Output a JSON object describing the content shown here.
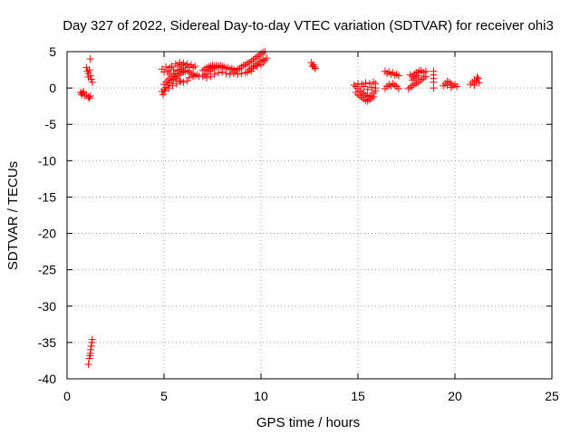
{
  "chart_data": {
    "type": "scatter",
    "title": "Day 327 of 2022, Sidereal Day-to-day VTEC variation (SDTVAR) for receiver ohi3",
    "xlabel": "GPS time / hours",
    "ylabel": "SDTVAR / TECUs",
    "xlim": [
      0,
      25
    ],
    "ylim": [
      -40,
      5
    ],
    "xticks": [
      0,
      5,
      10,
      15,
      20,
      25
    ],
    "yticks": [
      5,
      0,
      -5,
      -10,
      -15,
      -20,
      -25,
      -30,
      -35,
      -40
    ],
    "grid": true,
    "marker": "plus",
    "series_color": "#ff0000",
    "series": [
      {
        "name": "SDTVAR",
        "points": [
          [
            0.7,
            -0.6
          ],
          [
            0.75,
            -0.9
          ],
          [
            0.8,
            -0.7
          ],
          [
            0.85,
            -0.5
          ],
          [
            0.9,
            -1.0
          ],
          [
            1.0,
            -1.0
          ],
          [
            1.1,
            -1.2
          ],
          [
            1.15,
            -1.4
          ],
          [
            1.2,
            -1.1
          ],
          [
            1.0,
            2.8
          ],
          [
            1.05,
            2.3
          ],
          [
            1.1,
            2.0
          ],
          [
            1.15,
            2.5
          ],
          [
            1.2,
            1.7
          ],
          [
            1.25,
            1.2
          ],
          [
            1.3,
            0.8
          ],
          [
            1.2,
            4.0
          ],
          [
            1.1,
            1.5
          ],
          [
            1.1,
            -38.0
          ],
          [
            1.15,
            -37.2
          ],
          [
            1.2,
            -36.5
          ],
          [
            1.22,
            -36.0
          ],
          [
            1.25,
            -35.5
          ],
          [
            1.28,
            -35.0
          ],
          [
            1.3,
            -34.6
          ],
          [
            1.18,
            -36.8
          ],
          [
            4.9,
            2.6
          ],
          [
            5.0,
            2.2
          ],
          [
            5.1,
            2.9
          ],
          [
            5.2,
            2.4
          ],
          [
            5.3,
            2.8
          ],
          [
            5.4,
            3.0
          ],
          [
            5.5,
            2.5
          ],
          [
            5.6,
            3.3
          ],
          [
            5.7,
            3.0
          ],
          [
            5.8,
            3.5
          ],
          [
            5.9,
            3.2
          ],
          [
            6.0,
            3.4
          ],
          [
            6.1,
            3.1
          ],
          [
            6.2,
            3.3
          ],
          [
            6.3,
            2.9
          ],
          [
            6.4,
            3.2
          ],
          [
            6.5,
            2.8
          ],
          [
            6.6,
            3.0
          ],
          [
            4.9,
            -0.5
          ],
          [
            5.0,
            -0.2
          ],
          [
            5.1,
            0.1
          ],
          [
            5.2,
            0.4
          ],
          [
            5.3,
            0.7
          ],
          [
            5.4,
            1.0
          ],
          [
            5.5,
            1.2
          ],
          [
            5.6,
            1.5
          ],
          [
            5.7,
            1.7
          ],
          [
            5.8,
            1.9
          ],
          [
            5.9,
            2.1
          ],
          [
            6.0,
            2.2
          ],
          [
            6.1,
            2.3
          ],
          [
            6.2,
            2.4
          ],
          [
            6.3,
            2.2
          ],
          [
            6.4,
            2.0
          ],
          [
            6.5,
            1.9
          ],
          [
            6.6,
            1.7
          ],
          [
            6.7,
            1.8
          ],
          [
            6.8,
            1.6
          ],
          [
            5.0,
            0.5
          ],
          [
            5.1,
            0.8
          ],
          [
            5.2,
            1.1
          ],
          [
            5.3,
            1.3
          ],
          [
            5.4,
            1.6
          ],
          [
            5.5,
            1.9
          ],
          [
            5.6,
            2.0
          ],
          [
            5.7,
            2.3
          ],
          [
            5.8,
            2.5
          ],
          [
            5.9,
            2.6
          ],
          [
            6.0,
            2.8
          ],
          [
            5.2,
            2.2
          ],
          [
            5.3,
            1.9
          ],
          [
            5.5,
            1.6
          ],
          [
            5.6,
            1.3
          ],
          [
            5.8,
            1.0
          ],
          [
            6.0,
            0.8
          ],
          [
            6.2,
            1.0
          ],
          [
            6.3,
            1.4
          ],
          [
            6.5,
            1.6
          ],
          [
            4.95,
            -0.9
          ],
          [
            5.05,
            -0.4
          ],
          [
            5.25,
            0.0
          ],
          [
            5.45,
            0.3
          ],
          [
            5.65,
            0.6
          ],
          [
            5.85,
            0.9
          ],
          [
            7.0,
            1.6
          ],
          [
            7.1,
            1.8
          ],
          [
            7.2,
            2.0
          ],
          [
            7.3,
            2.3
          ],
          [
            7.4,
            2.5
          ],
          [
            7.5,
            2.7
          ],
          [
            7.6,
            2.8
          ],
          [
            7.7,
            2.9
          ],
          [
            7.8,
            3.0
          ],
          [
            7.9,
            2.9
          ],
          [
            8.0,
            2.8
          ],
          [
            8.1,
            2.9
          ],
          [
            8.2,
            2.7
          ],
          [
            8.3,
            2.8
          ],
          [
            8.4,
            2.6
          ],
          [
            8.5,
            2.7
          ],
          [
            8.6,
            2.5
          ],
          [
            7.0,
            2.4
          ],
          [
            7.1,
            2.6
          ],
          [
            7.2,
            2.8
          ],
          [
            7.3,
            2.9
          ],
          [
            7.4,
            3.0
          ],
          [
            7.5,
            3.1
          ],
          [
            7.6,
            3.0
          ],
          [
            7.7,
            3.1
          ],
          [
            7.8,
            3.0
          ],
          [
            7.9,
            3.1
          ],
          [
            8.0,
            3.0
          ],
          [
            7.2,
            1.4
          ],
          [
            7.4,
            1.6
          ],
          [
            7.6,
            1.9
          ],
          [
            7.8,
            2.1
          ],
          [
            8.0,
            2.2
          ],
          [
            8.2,
            2.0
          ],
          [
            8.4,
            1.9
          ],
          [
            8.6,
            2.0
          ],
          [
            8.8,
            1.9
          ],
          [
            9.0,
            2.0
          ],
          [
            9.2,
            2.1
          ],
          [
            8.6,
            2.2
          ],
          [
            8.7,
            2.4
          ],
          [
            8.8,
            2.6
          ],
          [
            8.9,
            2.7
          ],
          [
            9.0,
            2.9
          ],
          [
            9.1,
            3.1
          ],
          [
            9.2,
            3.2
          ],
          [
            9.3,
            3.4
          ],
          [
            9.4,
            3.5
          ],
          [
            9.5,
            3.7
          ],
          [
            9.6,
            3.9
          ],
          [
            9.7,
            4.1
          ],
          [
            9.8,
            4.3
          ],
          [
            9.9,
            4.5
          ],
          [
            10.0,
            4.7
          ],
          [
            10.1,
            4.9
          ],
          [
            10.2,
            5.0
          ],
          [
            9.3,
            2.2
          ],
          [
            9.4,
            2.5
          ],
          [
            9.5,
            2.7
          ],
          [
            9.6,
            2.9
          ],
          [
            9.7,
            3.1
          ],
          [
            9.8,
            3.3
          ],
          [
            9.9,
            3.5
          ],
          [
            10.0,
            3.7
          ],
          [
            10.1,
            3.9
          ],
          [
            9.4,
            2.5
          ],
          [
            9.5,
            2.3
          ],
          [
            9.6,
            2.7
          ],
          [
            9.8,
            3.0
          ],
          [
            10.0,
            3.2
          ],
          [
            10.1,
            3.5
          ],
          [
            10.2,
            3.8
          ],
          [
            10.3,
            4.1
          ],
          [
            12.6,
            3.5
          ],
          [
            12.7,
            3.2
          ],
          [
            12.75,
            2.9
          ],
          [
            12.8,
            2.7
          ],
          [
            12.65,
            3.0
          ],
          [
            14.8,
            0.4
          ],
          [
            14.9,
            0.2
          ],
          [
            15.0,
            -0.1
          ],
          [
            15.1,
            -0.4
          ],
          [
            15.2,
            -0.6
          ],
          [
            15.3,
            -0.8
          ],
          [
            15.4,
            -1.0
          ],
          [
            15.5,
            -1.1
          ],
          [
            15.6,
            -1.2
          ],
          [
            15.7,
            -1.0
          ],
          [
            15.8,
            -0.7
          ],
          [
            14.9,
            -0.6
          ],
          [
            15.0,
            -0.9
          ],
          [
            15.1,
            -1.1
          ],
          [
            15.2,
            -1.3
          ],
          [
            15.3,
            -1.5
          ],
          [
            15.4,
            -1.7
          ],
          [
            15.5,
            -1.8
          ],
          [
            15.6,
            -1.6
          ],
          [
            15.7,
            -1.4
          ],
          [
            15.8,
            -1.2
          ],
          [
            15.0,
            0.6
          ],
          [
            15.2,
            0.5
          ],
          [
            15.4,
            0.7
          ],
          [
            15.6,
            0.6
          ],
          [
            15.8,
            0.8
          ],
          [
            15.9,
            0.6
          ],
          [
            15.9,
            0.0
          ],
          [
            15.9,
            -0.4
          ],
          [
            15.3,
            0.2
          ],
          [
            15.5,
            -0.2
          ],
          [
            15.7,
            0.1
          ],
          [
            16.4,
            2.3
          ],
          [
            16.5,
            2.0
          ],
          [
            16.6,
            2.2
          ],
          [
            16.7,
            1.9
          ],
          [
            16.8,
            2.1
          ],
          [
            16.9,
            1.8
          ],
          [
            17.0,
            1.9
          ],
          [
            17.1,
            1.7
          ],
          [
            16.4,
            -0.1
          ],
          [
            16.5,
            0.2
          ],
          [
            16.6,
            0.5
          ],
          [
            16.7,
            0.3
          ],
          [
            16.8,
            0.6
          ],
          [
            16.9,
            0.4
          ],
          [
            17.0,
            0.2
          ],
          [
            17.1,
            -0.1
          ],
          [
            17.6,
            -0.1
          ],
          [
            17.7,
            0.1
          ],
          [
            17.8,
            0.3
          ],
          [
            17.9,
            0.5
          ],
          [
            18.0,
            0.6
          ],
          [
            18.1,
            0.8
          ],
          [
            18.2,
            1.0
          ],
          [
            18.3,
            1.2
          ],
          [
            18.4,
            1.4
          ],
          [
            18.5,
            1.6
          ],
          [
            17.7,
            1.8
          ],
          [
            17.8,
            1.6
          ],
          [
            17.9,
            1.9
          ],
          [
            18.0,
            2.1
          ],
          [
            18.1,
            2.2
          ],
          [
            18.2,
            2.4
          ],
          [
            18.3,
            2.3
          ],
          [
            18.4,
            2.1
          ],
          [
            18.5,
            2.3
          ],
          [
            17.8,
            1.1
          ],
          [
            17.9,
            1.3
          ],
          [
            18.0,
            1.5
          ],
          [
            18.1,
            1.7
          ],
          [
            18.9,
            2.3
          ],
          [
            18.9,
            1.8
          ],
          [
            18.9,
            1.3
          ],
          [
            18.9,
            0.8
          ],
          [
            18.9,
            0.0
          ],
          [
            19.4,
            0.3
          ],
          [
            19.5,
            0.6
          ],
          [
            19.6,
            0.4
          ],
          [
            19.7,
            0.8
          ],
          [
            19.8,
            0.6
          ],
          [
            19.9,
            0.3
          ],
          [
            20.0,
            0.5
          ],
          [
            20.1,
            0.2
          ],
          [
            19.6,
            0.9
          ],
          [
            19.8,
            0.1
          ],
          [
            20.8,
            0.5
          ],
          [
            20.9,
            0.8
          ],
          [
            21.0,
            1.1
          ],
          [
            21.1,
            0.9
          ],
          [
            21.2,
            1.3
          ],
          [
            21.25,
            0.7
          ],
          [
            21.0,
            0.4
          ],
          [
            21.15,
            1.5
          ]
        ]
      }
    ]
  }
}
